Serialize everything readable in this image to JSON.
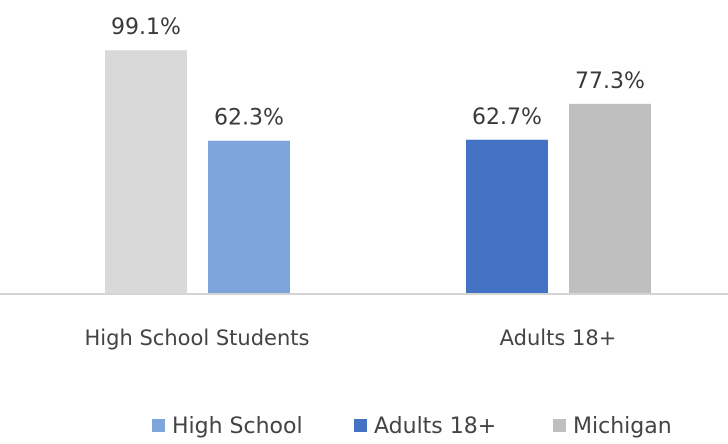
{
  "chart_data": {
    "type": "bar",
    "title": "",
    "xlabel": "",
    "ylabel": "",
    "ylim": [
      0,
      100
    ],
    "categories": [
      "High School Students",
      "Adults 18+"
    ],
    "bars": [
      {
        "category": "High School Students",
        "series": "High School",
        "value": 99.1,
        "label": "99.1%",
        "color": "#d9d9d9"
      },
      {
        "category": "High School Students",
        "series": "High School",
        "value": 62.3,
        "label": "62.3%",
        "color": "#7ea4dc"
      },
      {
        "category": "Adults 18+",
        "series": "Adults 18+",
        "value": 62.7,
        "label": "62.7%",
        "color": "#4472c4"
      },
      {
        "category": "Adults 18+",
        "series": "Michigan",
        "value": 77.3,
        "label": "77.3%",
        "color": "#bfbfbf"
      }
    ],
    "legend": [
      {
        "name": "High School",
        "color": "#7ea4dc"
      },
      {
        "name": "Adults 18+",
        "color": "#4472c4"
      },
      {
        "name": "Michigan",
        "color": "#bfbfbf"
      }
    ],
    "legend_position": "bottom",
    "grid": false
  }
}
